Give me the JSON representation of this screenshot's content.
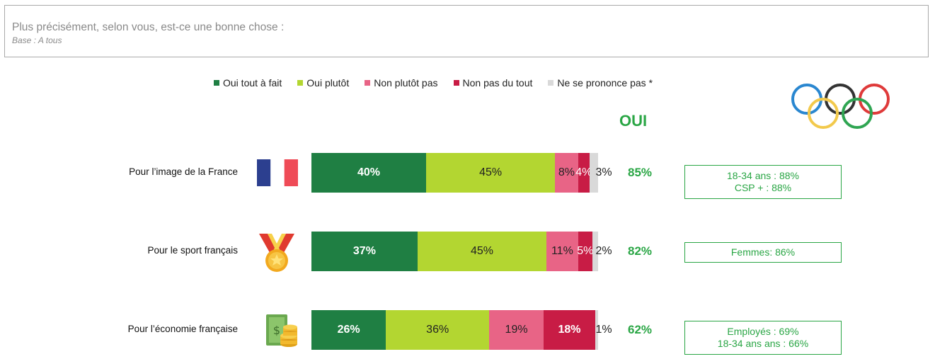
{
  "question": {
    "title": "Plus précisément, selon vous, est-ce une bonne chose :",
    "base": "Base : A tous"
  },
  "legend": [
    {
      "label": "Oui tout à fait",
      "color": "#1f7f43"
    },
    {
      "label": "Oui plutôt",
      "color": "#b3d631"
    },
    {
      "label": "Non plutôt pas",
      "color": "#e86486"
    },
    {
      "label": "Non pas du tout",
      "color": "#c81c45"
    },
    {
      "label": "Ne se prononce pas *",
      "color": "#d9d9d9"
    }
  ],
  "oui_header": "OUI",
  "chart_data": {
    "type": "bar",
    "orientation": "horizontal",
    "stacked": true,
    "categories": [
      "Pour l’image de la France",
      "Pour le sport français",
      "Pour l’économie française"
    ],
    "series": [
      {
        "name": "Oui tout à fait",
        "values": [
          40,
          37,
          26
        ],
        "labels": [
          "40%",
          "37%",
          "26%"
        ]
      },
      {
        "name": "Oui plutôt",
        "values": [
          45,
          45,
          36
        ],
        "labels": [
          "45%",
          "45%",
          "36%"
        ]
      },
      {
        "name": "Non plutôt pas",
        "values": [
          8,
          11,
          19
        ],
        "labels": [
          "8%",
          "11%",
          "19%"
        ]
      },
      {
        "name": "Non pas du tout",
        "values": [
          4,
          5,
          18
        ],
        "labels": [
          "4%",
          "5%",
          "18%"
        ]
      },
      {
        "name": "Ne se prononce pas *",
        "values": [
          3,
          2,
          1
        ],
        "labels": [
          "3%",
          "2%",
          "1%"
        ]
      }
    ],
    "totals_oui": [
      "85%",
      "82%",
      "62%"
    ],
    "notes": [
      [
        "18-34 ans : 88%",
        "CSP + : 88%"
      ],
      [
        "Femmes: 86%"
      ],
      [
        "Employés : 69%",
        "18-34 ans ans : 66%"
      ]
    ],
    "icons": [
      "france-flag-icon",
      "medal-icon",
      "money-coins-icon"
    ]
  }
}
